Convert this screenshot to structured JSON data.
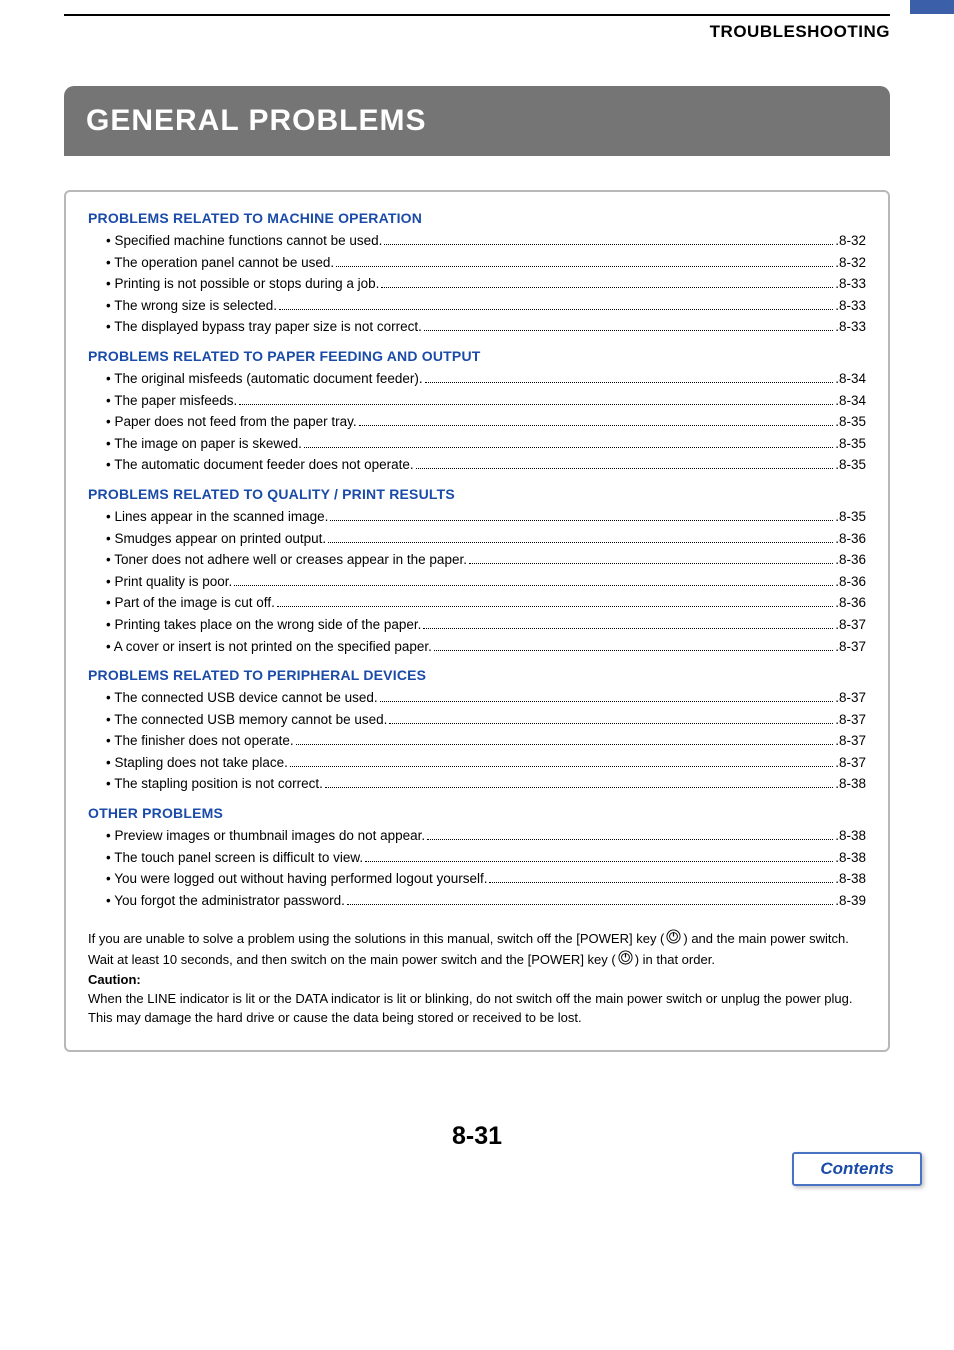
{
  "colors": {
    "accent_blue": "#3b5fa8",
    "link_blue": "#1a4ba8",
    "title_bg": "#757575",
    "border_gray": "#b8b8b8"
  },
  "header": {
    "breadcrumb": "TROUBLESHOOTING"
  },
  "title": "GENERAL PROBLEMS",
  "toc": {
    "sections": [
      {
        "heading": "PROBLEMS RELATED TO MACHINE OPERATION",
        "items": [
          {
            "label": "Specified machine functions cannot be used.",
            "page": "8-32"
          },
          {
            "label": "The operation panel cannot be used.",
            "page": "8-32"
          },
          {
            "label": "Printing is not possible or stops during a job.",
            "page": "8-33"
          },
          {
            "label": "The wrong size is selected.",
            "page": "8-33"
          },
          {
            "label": "The displayed bypass tray paper size is not correct.",
            "page": "8-33"
          }
        ]
      },
      {
        "heading": "PROBLEMS RELATED TO PAPER FEEDING AND OUTPUT",
        "items": [
          {
            "label": "The original misfeeds (automatic document feeder).",
            "page": "8-34"
          },
          {
            "label": "The paper misfeeds.",
            "page": "8-34"
          },
          {
            "label": "Paper does not feed from the paper tray.",
            "page": "8-35"
          },
          {
            "label": "The image on paper is skewed.",
            "page": "8-35"
          },
          {
            "label": "The automatic document feeder does not operate.",
            "page": "8-35"
          }
        ]
      },
      {
        "heading": "PROBLEMS RELATED TO QUALITY / PRINT RESULTS",
        "items": [
          {
            "label": "Lines appear in the scanned image.",
            "page": "8-35"
          },
          {
            "label": "Smudges appear on printed output.",
            "page": "8-36"
          },
          {
            "label": "Toner does not adhere well or creases appear in the paper.",
            "page": "8-36"
          },
          {
            "label": "Print quality is poor.",
            "page": "8-36"
          },
          {
            "label": "Part of the image is cut off.",
            "page": "8-36"
          },
          {
            "label": "Printing takes place on the wrong side of the paper.",
            "page": "8-37"
          },
          {
            "label": "A cover or insert is not printed on the specified paper.",
            "page": "8-37"
          }
        ]
      },
      {
        "heading": "PROBLEMS RELATED TO PERIPHERAL DEVICES",
        "items": [
          {
            "label": "The connected USB device cannot be used.",
            "page": "8-37"
          },
          {
            "label": "The connected USB memory cannot be used.",
            "page": "8-37"
          },
          {
            "label": "The finisher does not operate.",
            "page": "8-37"
          },
          {
            "label": "Stapling does not take place.",
            "page": "8-37"
          },
          {
            "label": "The stapling position is not correct.",
            "page": "8-38"
          }
        ]
      },
      {
        "heading": "OTHER PROBLEMS",
        "items": [
          {
            "label": "Preview images or thumbnail images do not appear.",
            "page": "8-38"
          },
          {
            "label": "The touch panel screen is difficult to view.",
            "page": "8-38"
          },
          {
            "label": "You were logged out without having performed logout yourself.",
            "page": "8-38"
          },
          {
            "label": "You forgot the administrator password.",
            "page": "8-39"
          }
        ]
      }
    ]
  },
  "note": {
    "line1a": "If you are unable to solve a problem using the solutions in this manual, switch off the [POWER] key (",
    "line1b": ") and the main power switch. Wait at least 10 seconds, and then switch on the main power switch and the [POWER] key (",
    "line1c": ") in that order.",
    "caution_label": "Caution:",
    "caution_body": "When the LINE indicator is lit or the DATA indicator is lit or blinking, do not switch off the main power switch or unplug the power plug. This may damage the hard drive or cause the data being stored or received to be lost."
  },
  "footer": {
    "page_number": "8-31",
    "contents_label": "Contents"
  }
}
